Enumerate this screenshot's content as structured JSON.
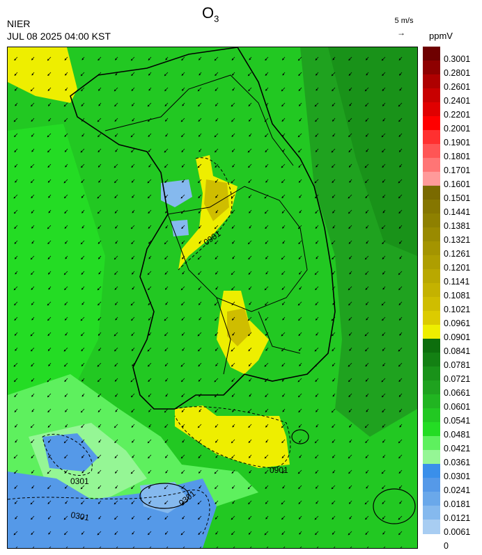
{
  "header": {
    "title_main": "O",
    "title_sub": "3",
    "org": "NIER",
    "timestamp": "JUL 08 2025 04:00 KST",
    "wind_ref": "5 m/s",
    "unit": "ppmV"
  },
  "legend": {
    "labels": [
      "0.3001",
      "0.2801",
      "0.2601",
      "0.2401",
      "0.2201",
      "0.2001",
      "0.1901",
      "0.1801",
      "0.1701",
      "0.1601",
      "0.1501",
      "0.1441",
      "0.1381",
      "0.1321",
      "0.1261",
      "0.1201",
      "0.1141",
      "0.1081",
      "0.1021",
      "0.0961",
      "0.0901",
      "0.0841",
      "0.0781",
      "0.0721",
      "0.0661",
      "0.0601",
      "0.0541",
      "0.0481",
      "0.0421",
      "0.0361",
      "0.0301",
      "0.0241",
      "0.0181",
      "0.0121",
      "0.0061",
      "0"
    ],
    "colors": [
      "#6e0000",
      "#8e0000",
      "#ae0000",
      "#c80000",
      "#e00000",
      "#ff0000",
      "#ff3030",
      "#ff5555",
      "#ff7575",
      "#ff9a9a",
      "#7a6a00",
      "#857600",
      "#8e8000",
      "#998a00",
      "#a49400",
      "#ae9e00",
      "#b9a800",
      "#c4b200",
      "#cfbd00",
      "#dccb00",
      "#eeee00",
      "#0d6e0d",
      "#138013",
      "#199219",
      "#1fa21f",
      "#21b521",
      "#22c822",
      "#24dc24",
      "#5ef05e",
      "#95f695",
      "#3a8fea",
      "#5599e8",
      "#6aa8ea",
      "#85b9ee",
      "#a8cdf2"
    ]
  },
  "map": {
    "contour_labels": [
      "0301",
      "0301",
      "0301",
      "0901",
      "0901"
    ]
  }
}
